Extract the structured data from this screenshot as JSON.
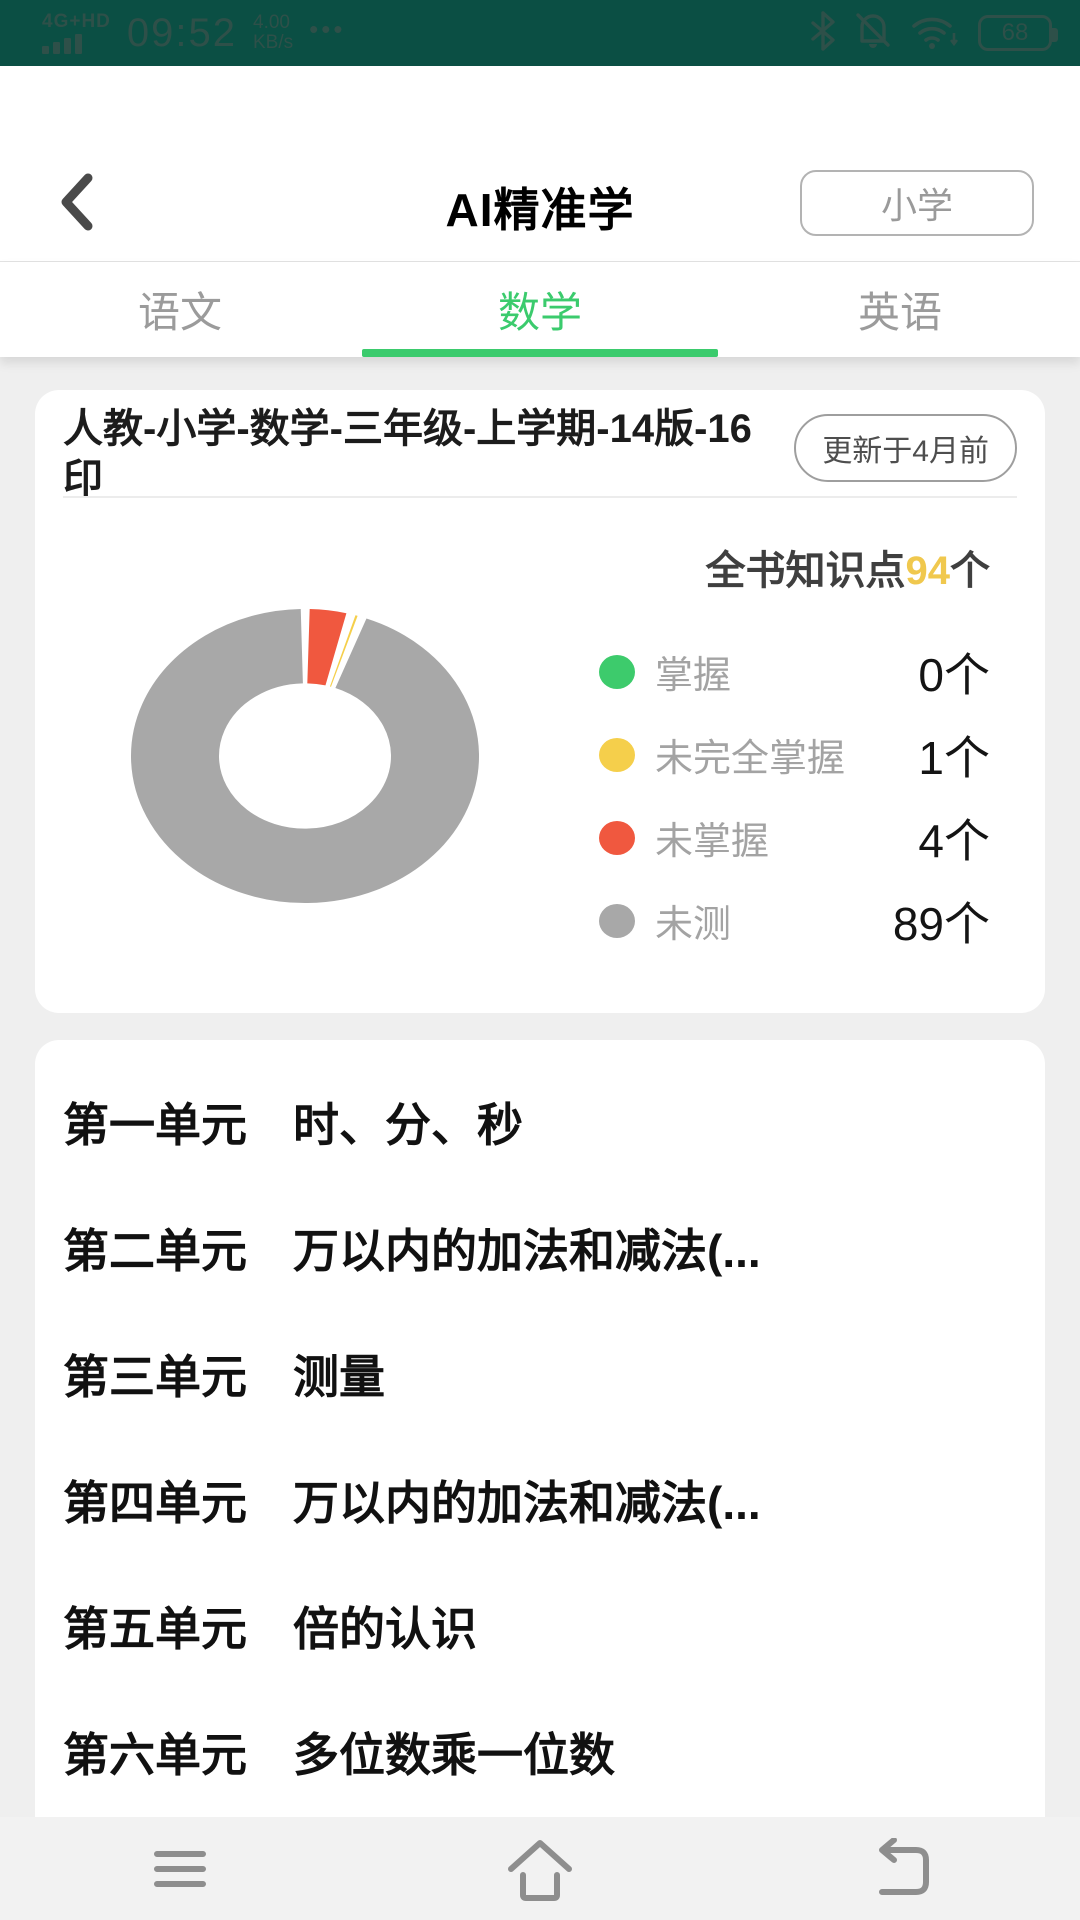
{
  "status_bar": {
    "network": "4G+HD",
    "time": "09:52",
    "speed_value": "4.00",
    "speed_unit": "KB/s",
    "more": "•••",
    "battery_level": "68"
  },
  "header": {
    "title": "AI精准学",
    "stage_button_label": "小学"
  },
  "tabs": [
    {
      "label": "语文",
      "active": false
    },
    {
      "label": "数学",
      "active": true
    },
    {
      "label": "英语",
      "active": false
    }
  ],
  "book_card": {
    "title": "人教-小学-数学-三年级-上学期-14版-16印",
    "updated_badge": "更新于4月前",
    "total_prefix": "全书知识点",
    "total_count": "94",
    "total_suffix": "个"
  },
  "chart_data": {
    "type": "pie",
    "donut": true,
    "title": "全书知识点94个",
    "total": 94,
    "labels": [
      "掌握",
      "未完全掌握",
      "未掌握",
      "未测"
    ],
    "values": [
      0,
      1,
      4,
      89
    ],
    "colors": [
      "#3dcb6c",
      "#f5cf4b",
      "#f0583f",
      "#a8a8a8"
    ],
    "draw_order": [
      2,
      1,
      0,
      3
    ],
    "start_angle_deg": 0,
    "direction": "clockwise",
    "legend_position": "right"
  },
  "legend": [
    {
      "label": "掌握",
      "count": "0个",
      "color": "#3dcb6c"
    },
    {
      "label": "未完全掌握",
      "count": "1个",
      "color": "#f5cf4b"
    },
    {
      "label": "未掌握",
      "count": "4个",
      "color": "#f0583f"
    },
    {
      "label": "未测",
      "count": "89个",
      "color": "#a8a8a8"
    }
  ],
  "units": [
    {
      "no": "第一单元",
      "name": "时、分、秒"
    },
    {
      "no": "第二单元",
      "name": "万以内的加法和减法(..."
    },
    {
      "no": "第三单元",
      "name": "测量"
    },
    {
      "no": "第四单元",
      "name": "万以内的加法和减法(..."
    },
    {
      "no": "第五单元",
      "name": "倍的认识"
    },
    {
      "no": "第六单元",
      "name": "多位数乘一位数"
    }
  ],
  "colors": {
    "status_bar_bg": "#0b4f44",
    "accent_green": "#3bcb6d",
    "mastered_green": "#3dcb6c",
    "partial_yellow": "#f5cf4b",
    "unmastered_red": "#f0583f",
    "untested_gray": "#a8a8a8",
    "count_gold": "#f0c84e"
  }
}
